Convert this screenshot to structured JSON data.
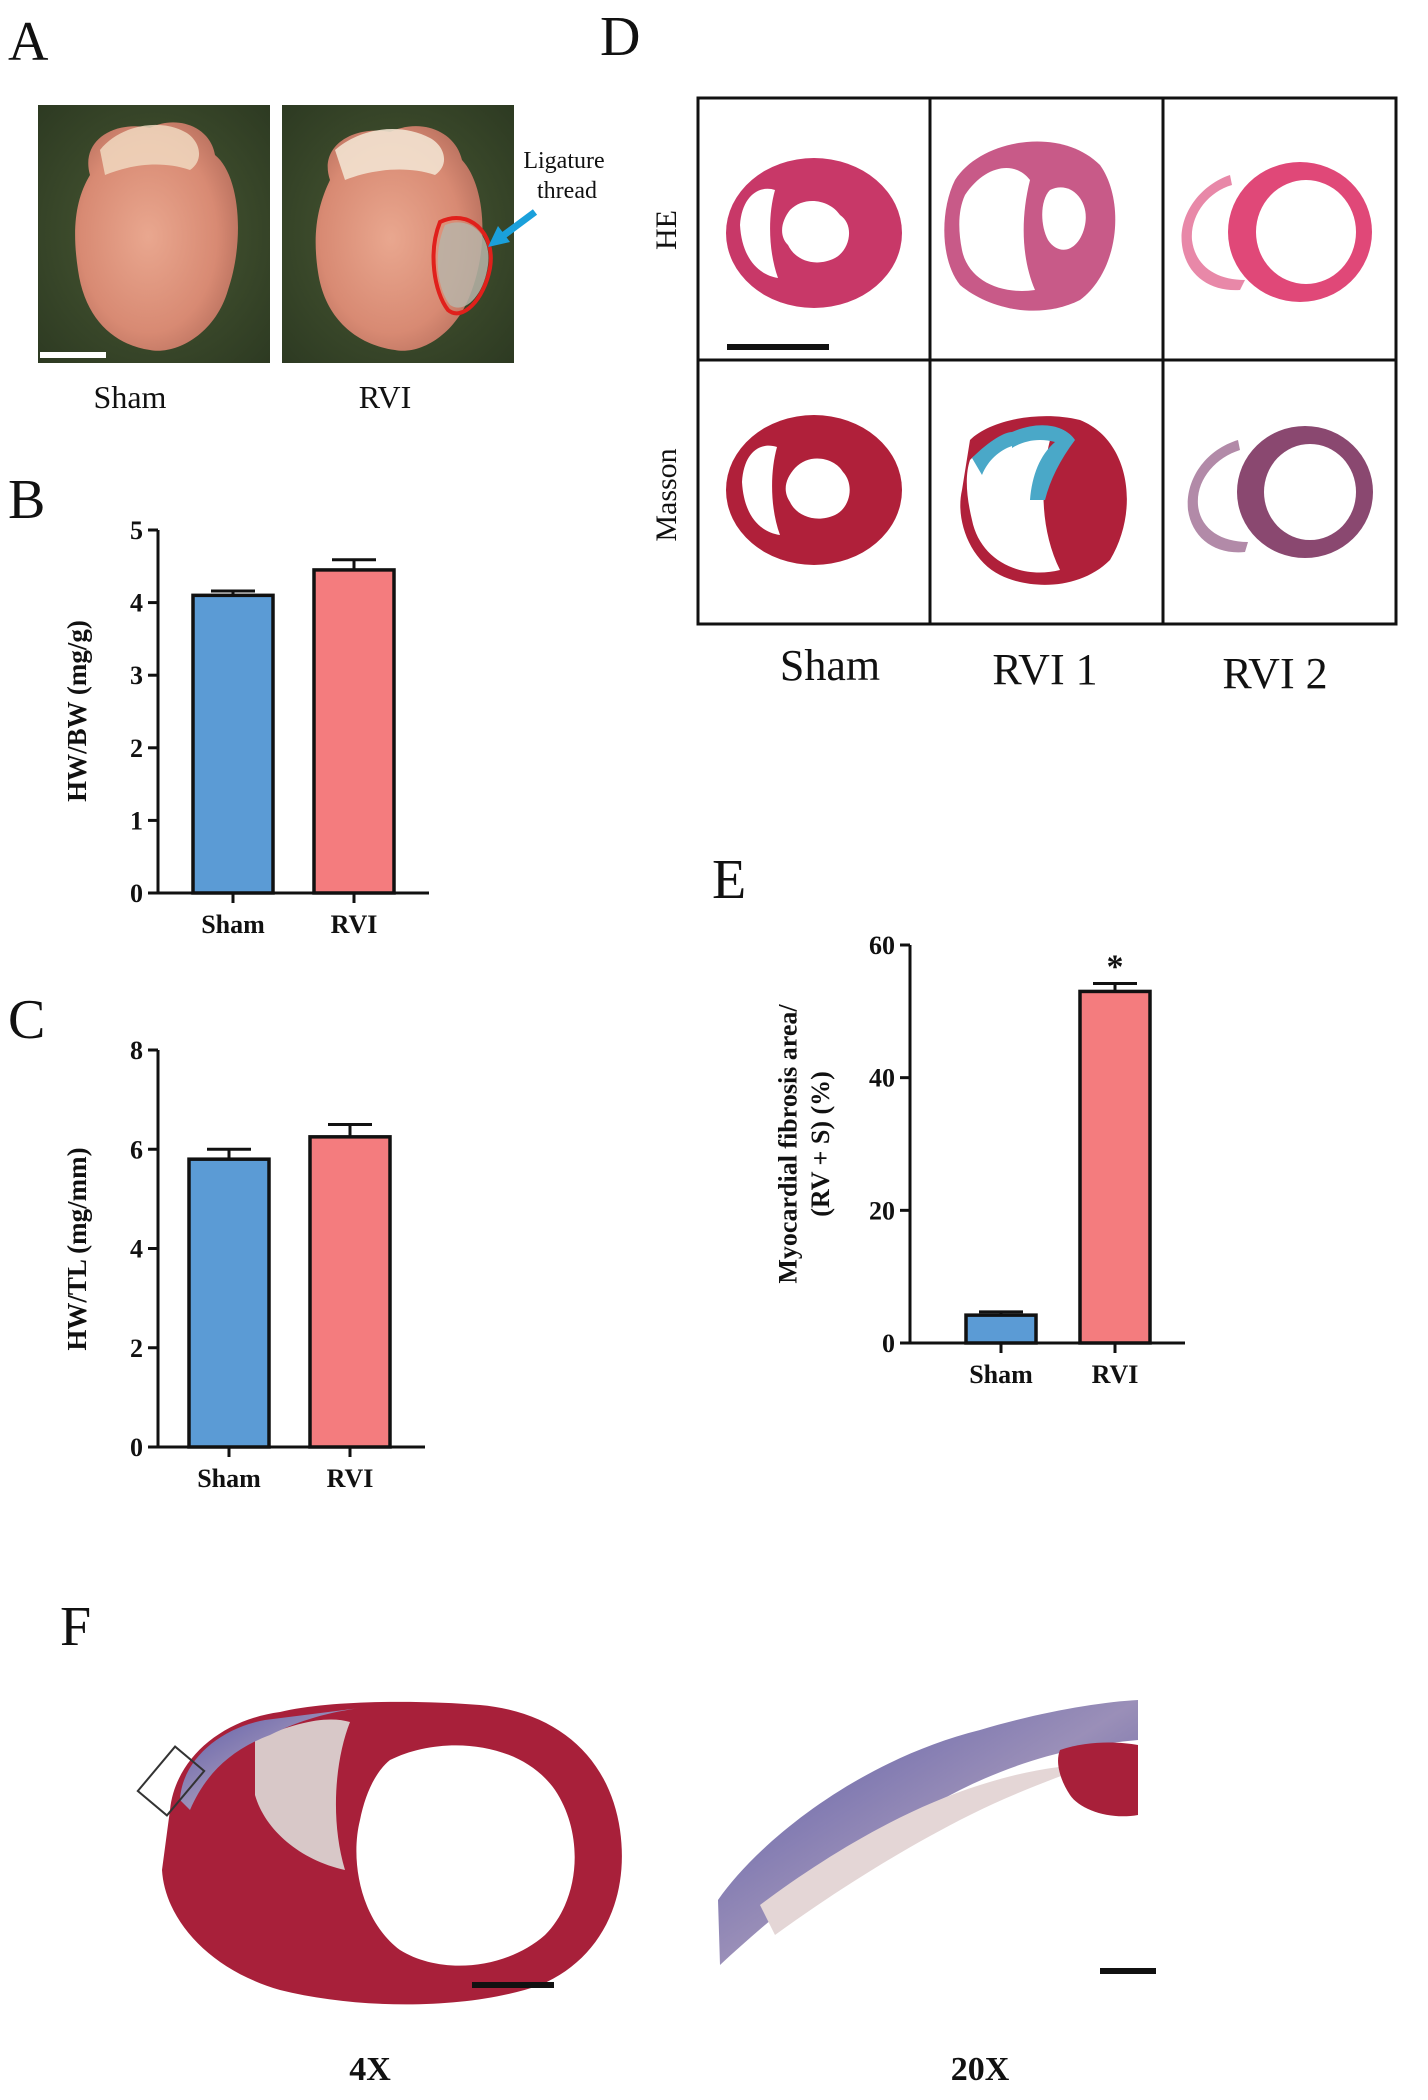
{
  "panels": {
    "a": {
      "letter": "A",
      "sham_label": "Sham",
      "rvi_label": "RVI",
      "annotation": "Ligature\nthread",
      "annotation_color": "#1aa0db",
      "highlight_color": "#e0201b"
    },
    "b": {
      "letter": "B"
    },
    "c": {
      "letter": "C"
    },
    "d": {
      "letter": "D",
      "row_labels": [
        "HE",
        "Masson"
      ],
      "col_labels": [
        "Sham",
        "RVI 1",
        "RVI 2"
      ]
    },
    "e": {
      "letter": "E"
    },
    "f": {
      "letter": "F",
      "labels": [
        "4X",
        "20X"
      ]
    }
  },
  "colors": {
    "sham_bar": "#5b9bd5",
    "rvi_bar": "#f47c7e",
    "tissue_red": "#b0203a",
    "collagen_blue": "#4aa8c8",
    "he_pink": "#d4447a"
  },
  "chart_data": [
    {
      "id": "B",
      "type": "bar",
      "categories": [
        "Sham",
        "RVI"
      ],
      "values": [
        4.1,
        4.45
      ],
      "errors": [
        0.06,
        0.14
      ],
      "ylabel": "HW/BW (mg/g)",
      "xlabel": "",
      "ylim": [
        0,
        5
      ],
      "yticks": [
        0,
        1,
        2,
        3,
        4,
        5
      ],
      "annotations": []
    },
    {
      "id": "C",
      "type": "bar",
      "categories": [
        "Sham",
        "RVI"
      ],
      "values": [
        5.8,
        6.25
      ],
      "errors": [
        0.2,
        0.25
      ],
      "ylabel": "HW/TL (mg/mm)",
      "xlabel": "",
      "ylim": [
        0,
        8
      ],
      "yticks": [
        0,
        2,
        4,
        6,
        8
      ],
      "annotations": []
    },
    {
      "id": "E",
      "type": "bar",
      "categories": [
        "Sham",
        "RVI"
      ],
      "values": [
        4.2,
        53
      ],
      "errors": [
        0.5,
        1.2
      ],
      "ylabel": "Myocardial fibrosis area/\n(RV + S) (%)",
      "xlabel": "",
      "ylim": [
        0,
        60
      ],
      "yticks": [
        0,
        20,
        40,
        60
      ],
      "annotations": [
        "",
        "*"
      ]
    }
  ]
}
